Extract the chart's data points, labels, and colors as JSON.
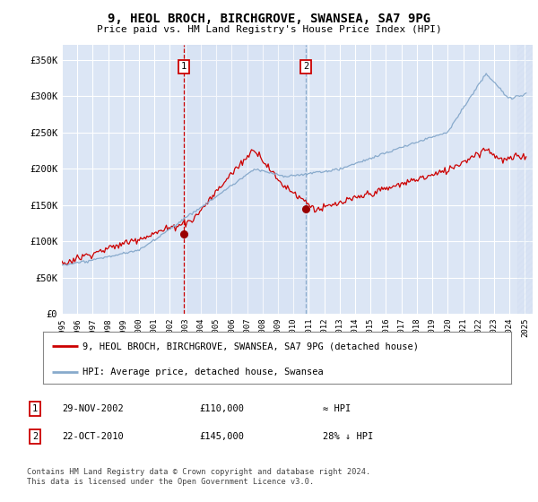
{
  "title": "9, HEOL BROCH, BIRCHGROVE, SWANSEA, SA7 9PG",
  "subtitle": "Price paid vs. HM Land Registry's House Price Index (HPI)",
  "ylim": [
    0,
    370000
  ],
  "yticks": [
    0,
    50000,
    100000,
    150000,
    200000,
    250000,
    300000,
    350000
  ],
  "ytick_labels": [
    "£0",
    "£50K",
    "£100K",
    "£150K",
    "£200K",
    "£250K",
    "£300K",
    "£350K"
  ],
  "background_color": "#ffffff",
  "plot_bg_color": "#dce6f5",
  "grid_color": "#ffffff",
  "transaction1": {
    "date_num": 2002.91,
    "price": 110000,
    "label": "1",
    "date_str": "29-NOV-2002"
  },
  "transaction2": {
    "date_num": 2010.8,
    "price": 145000,
    "label": "2",
    "date_str": "22-OCT-2010"
  },
  "legend_line1": "9, HEOL BROCH, BIRCHGROVE, SWANSEA, SA7 9PG (detached house)",
  "legend_line2": "HPI: Average price, detached house, Swansea",
  "footer1": "Contains HM Land Registry data © Crown copyright and database right 2024.",
  "footer2": "This data is licensed under the Open Government Licence v3.0.",
  "table_row1_label": "1",
  "table_row1_date": "29-NOV-2002",
  "table_row1_price": "£110,000",
  "table_row1_hpi": "≈ HPI",
  "table_row2_label": "2",
  "table_row2_date": "22-OCT-2010",
  "table_row2_price": "£145,000",
  "table_row2_hpi": "28% ↓ HPI",
  "line_color_property": "#cc0000",
  "line_color_hpi": "#88aacc",
  "vline_color1": "#cc0000",
  "vline_color2": "#88aacc",
  "box_border_color": "#cc0000",
  "marker_color": "#990000"
}
